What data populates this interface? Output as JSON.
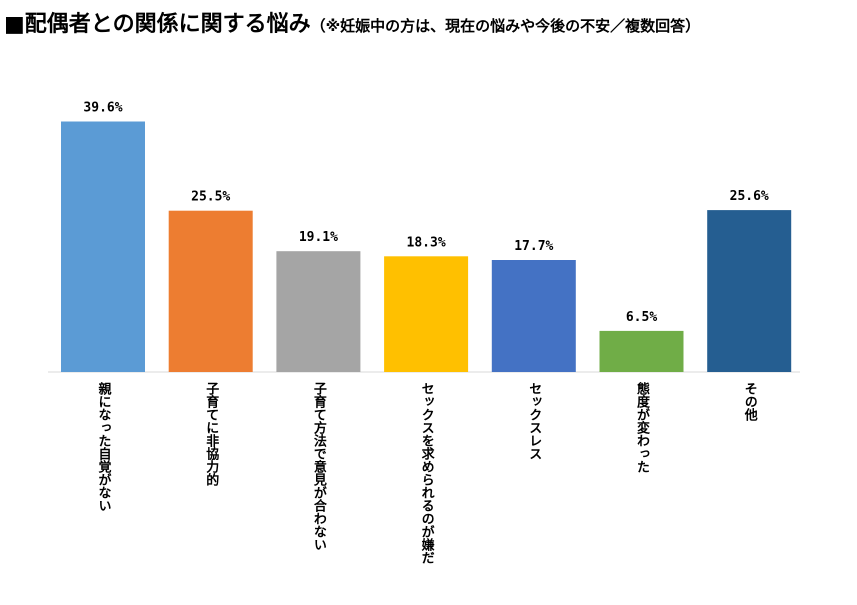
{
  "title": {
    "main": "■配偶者との関係に関する悩み",
    "sub": "（※妊娠中の方は、現在の悩みや今後の不安／複数回答）"
  },
  "chart_data": {
    "type": "bar",
    "categories": [
      "親になった自覚がない",
      "子育てに非協力的",
      "子育て方法で意見が合わない",
      "セックスを求められるのが嫌だ",
      "セックスレス",
      "態度が変わった",
      "その他"
    ],
    "values": [
      39.6,
      25.5,
      19.1,
      18.3,
      17.7,
      6.5,
      25.6
    ],
    "value_labels": [
      "39.6%",
      "25.5%",
      "19.1%",
      "18.3%",
      "17.7%",
      "6.5%",
      "25.6%"
    ],
    "colors": [
      "#5B9BD5",
      "#ED7D31",
      "#A5A5A5",
      "#FFC000",
      "#4472C4",
      "#70AD47",
      "#255E91"
    ],
    "unit": "%",
    "ylim": [
      0,
      40
    ],
    "grid": false,
    "legend": "none",
    "category_label_orientation": "vertical"
  }
}
